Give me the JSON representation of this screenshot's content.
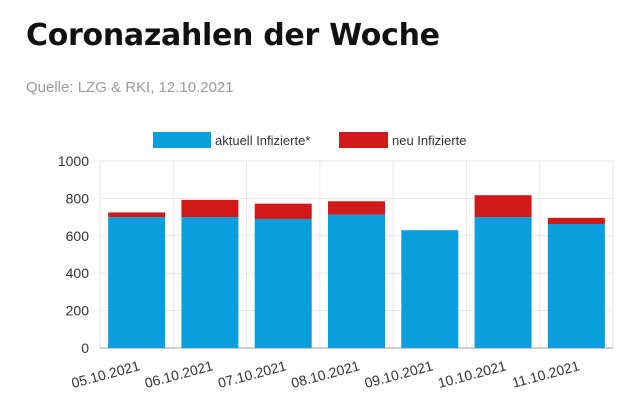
{
  "header": {
    "title": "Coronazahlen der Woche",
    "source": "Quelle: LZG & RKI, 12.10.2021"
  },
  "colors": {
    "active": "#0a9fdc",
    "new": "#d01a1a",
    "grid": "#e6e6e6",
    "axis": "#999999"
  },
  "chart_data": {
    "type": "bar",
    "stacked": true,
    "categories": [
      "05.10.2021",
      "06.10.2021",
      "07.10.2021",
      "08.10.2021",
      "09.10.2021",
      "10.10.2021",
      "11.10.2021"
    ],
    "series": [
      {
        "name": "aktuell Infizierte*",
        "values": [
          700,
          700,
          690,
          713,
          630,
          700,
          663
        ]
      },
      {
        "name": "neu Infizierte",
        "values": [
          25,
          92,
          82,
          72,
          0,
          117,
          33
        ]
      }
    ],
    "ylim": [
      0,
      1000
    ],
    "yticks": [
      0,
      200,
      400,
      600,
      800,
      1000
    ],
    "grid": true,
    "legend_position": "top",
    "xlabel": "",
    "ylabel": ""
  }
}
